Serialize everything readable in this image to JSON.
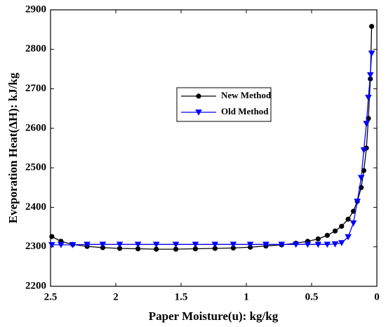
{
  "chart_data": {
    "type": "line",
    "xlabel": "Paper Moisture(u): kg/kg",
    "ylabel": "Eveporation Heat(ΔH): kJ/kg",
    "x": [
      2.49,
      2.42,
      2.33,
      2.22,
      2.1,
      1.97,
      1.83,
      1.69,
      1.54,
      1.39,
      1.24,
      1.1,
      0.97,
      0.85,
      0.73,
      0.62,
      0.53,
      0.45,
      0.38,
      0.32,
      0.27,
      0.22,
      0.18,
      0.15,
      0.12,
      0.1,
      0.08,
      0.065,
      0.05,
      0.04
    ],
    "series": [
      {
        "name": "New Method",
        "color": "#000000",
        "marker": "circle",
        "values": [
          2326,
          2314,
          2306,
          2301,
          2298,
          2296,
          2295,
          2294,
          2294,
          2295,
          2296,
          2297,
          2299,
          2302,
          2305,
          2309,
          2314,
          2320,
          2329,
          2340,
          2352,
          2370,
          2390,
          2415,
          2450,
          2493,
          2550,
          2625,
          2725,
          2858
        ]
      },
      {
        "name": "Old Method",
        "color": "#0000ff",
        "marker": "triangle-down",
        "values": [
          2305,
          2305,
          2305,
          2306,
          2306,
          2306,
          2306,
          2306,
          2306,
          2306,
          2306,
          2306,
          2306,
          2306,
          2306,
          2306,
          2306,
          2306,
          2306,
          2307,
          2310,
          2325,
          2360,
          2415,
          2475,
          2545,
          2612,
          2678,
          2735,
          2790
        ]
      }
    ],
    "xlim": [
      2.5,
      0
    ],
    "xticks": [
      2.5,
      2,
      1.5,
      1,
      0.5,
      0
    ],
    "ylim": [
      2200,
      2900
    ],
    "yticks": [
      2200,
      2300,
      2400,
      2500,
      2600,
      2700,
      2800,
      2900
    ],
    "legend": "upper center"
  }
}
